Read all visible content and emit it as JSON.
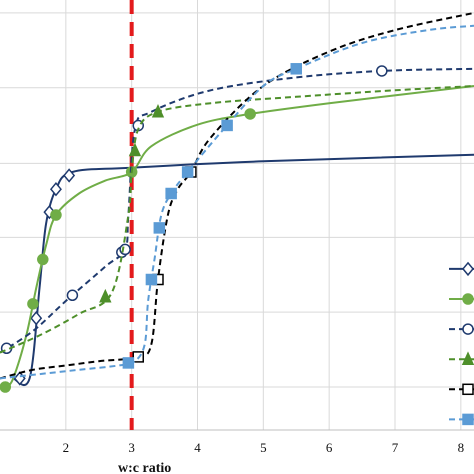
{
  "chart_data": {
    "type": "line",
    "xlabel": "w:c ratio",
    "ylabel": "",
    "title": "",
    "xlim": [
      1.0,
      8.2
    ],
    "ylim": [
      0.0,
      1.0
    ],
    "xticks": [
      2,
      3,
      4,
      5,
      6,
      7,
      8
    ],
    "yticks": [
      0.1,
      0.274,
      0.448,
      0.62,
      0.796,
      0.97
    ],
    "grid": "horizontal and vertical",
    "legend": "right edge (partially cropped)",
    "reference_line": {
      "x": 3.0,
      "color": "#e31a1c",
      "style": "dashed"
    },
    "series": [
      {
        "color": "#1f3a6e",
        "dash": "solid",
        "marker": "diamond-open",
        "x": [
          1.2,
          1.45,
          1.6,
          1.7,
          1.85,
          2.1,
          3.0,
          5.0,
          8.2
        ],
        "y": [
          0.12,
          0.12,
          0.33,
          0.48,
          0.56,
          0.6,
          0.61,
          0.625,
          0.64
        ],
        "marker_x": [
          1.3,
          1.55,
          1.75,
          1.85,
          2.05
        ]
      },
      {
        "color": "#70ad47",
        "dash": "solid",
        "marker": "circle-filled",
        "x": [
          1.1,
          1.2,
          1.4,
          1.55,
          1.7,
          1.85,
          2.2,
          2.6,
          3.0,
          3.3,
          4.0,
          4.8,
          6.0,
          8.2
        ],
        "y": [
          0.1,
          0.12,
          0.22,
          0.33,
          0.43,
          0.5,
          0.55,
          0.58,
          0.6,
          0.66,
          0.71,
          0.735,
          0.76,
          0.8
        ],
        "marker_x": [
          1.08,
          1.5,
          1.65,
          1.85,
          3.0,
          4.8
        ]
      },
      {
        "color": "#1f3a6e",
        "dash": "dashed",
        "marker": "circle-open",
        "x": [
          1.0,
          1.5,
          2.0,
          2.6,
          2.9,
          2.95,
          3.05,
          3.3,
          4.2,
          5.5,
          6.8,
          8.2
        ],
        "y": [
          0.18,
          0.23,
          0.3,
          0.38,
          0.42,
          0.5,
          0.7,
          0.74,
          0.79,
          0.82,
          0.835,
          0.84
        ],
        "marker_x": [
          1.1,
          2.1,
          2.85,
          2.9,
          3.1,
          6.8
        ]
      },
      {
        "color": "#4e8f2a",
        "dash": "dashed",
        "marker": "triangle-filled",
        "x": [
          1.0,
          1.6,
          2.2,
          2.7,
          2.95,
          3.0,
          3.1,
          3.4,
          4.2,
          5.5,
          7.0,
          8.2
        ],
        "y": [
          0.18,
          0.22,
          0.27,
          0.32,
          0.5,
          0.6,
          0.7,
          0.74,
          0.76,
          0.775,
          0.79,
          0.8
        ],
        "marker_x": [
          2.6,
          3.05,
          3.4
        ]
      },
      {
        "color": "#000000",
        "dash": "dashed",
        "marker": "square-open",
        "x": [
          1.0,
          1.5,
          2.0,
          2.5,
          3.1,
          3.3,
          3.4,
          3.55,
          3.7,
          3.9,
          4.2,
          5.0,
          6.0,
          7.0,
          8.2
        ],
        "y": [
          0.12,
          0.14,
          0.15,
          0.16,
          0.17,
          0.2,
          0.35,
          0.5,
          0.56,
          0.6,
          0.68,
          0.8,
          0.88,
          0.93,
          0.97
        ],
        "marker_x": [
          3.1,
          3.4,
          3.9
        ]
      },
      {
        "color": "#5b9bd5",
        "dash": "dashed",
        "marker": "square-filled",
        "x": [
          1.0,
          1.6,
          2.2,
          2.8,
          3.05,
          3.2,
          3.25,
          3.35,
          3.45,
          3.6,
          3.85,
          4.4,
          5.0,
          5.5,
          6.5,
          7.5,
          8.2
        ],
        "y": [
          0.12,
          0.13,
          0.14,
          0.15,
          0.16,
          0.2,
          0.3,
          0.4,
          0.5,
          0.55,
          0.6,
          0.7,
          0.8,
          0.84,
          0.9,
          0.93,
          0.94
        ],
        "marker_x": [
          2.95,
          3.3,
          3.42,
          3.6,
          3.85,
          4.45,
          5.5
        ]
      }
    ]
  }
}
